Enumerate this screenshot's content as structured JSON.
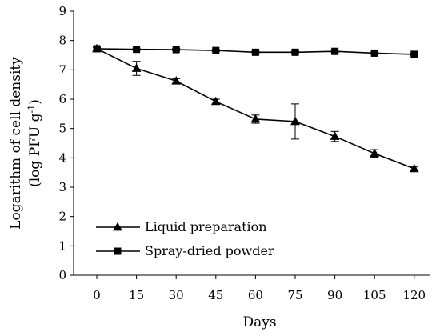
{
  "chart_data": {
    "type": "line",
    "xlabel": "Days",
    "ylabel_main": "Logarithm of cell density",
    "ylabel_unit_prefix": "(log PFU g",
    "ylabel_unit_sup": "-1",
    "ylabel_unit_suffix": ")",
    "x": [
      0,
      15,
      30,
      45,
      60,
      75,
      90,
      105,
      120
    ],
    "x_tick_labels": [
      "0",
      "15",
      "30",
      "45",
      "60",
      "75",
      "90",
      "105",
      "120"
    ],
    "y_ticks": [
      "0",
      "1",
      "2",
      "3",
      "4",
      "5",
      "6",
      "7",
      "8",
      "9"
    ],
    "ylim": [
      0,
      9
    ],
    "grid": false,
    "legend_position": "bottom-left",
    "series": [
      {
        "name": "Liquid preparation",
        "marker": "triangle",
        "values": [
          7.72,
          7.05,
          6.62,
          5.92,
          5.32,
          5.24,
          4.73,
          4.15,
          3.63
        ],
        "errors": [
          0.05,
          0.24,
          0.08,
          0.08,
          0.14,
          0.6,
          0.17,
          0.13,
          0.06
        ]
      },
      {
        "name": "Spray-dried powder",
        "marker": "square",
        "values": [
          7.72,
          7.7,
          7.69,
          7.66,
          7.6,
          7.6,
          7.63,
          7.57,
          7.53
        ],
        "errors": [
          0.04,
          0.04,
          0.04,
          0.04,
          0.04,
          0.04,
          0.04,
          0.04,
          0.04
        ]
      }
    ]
  }
}
